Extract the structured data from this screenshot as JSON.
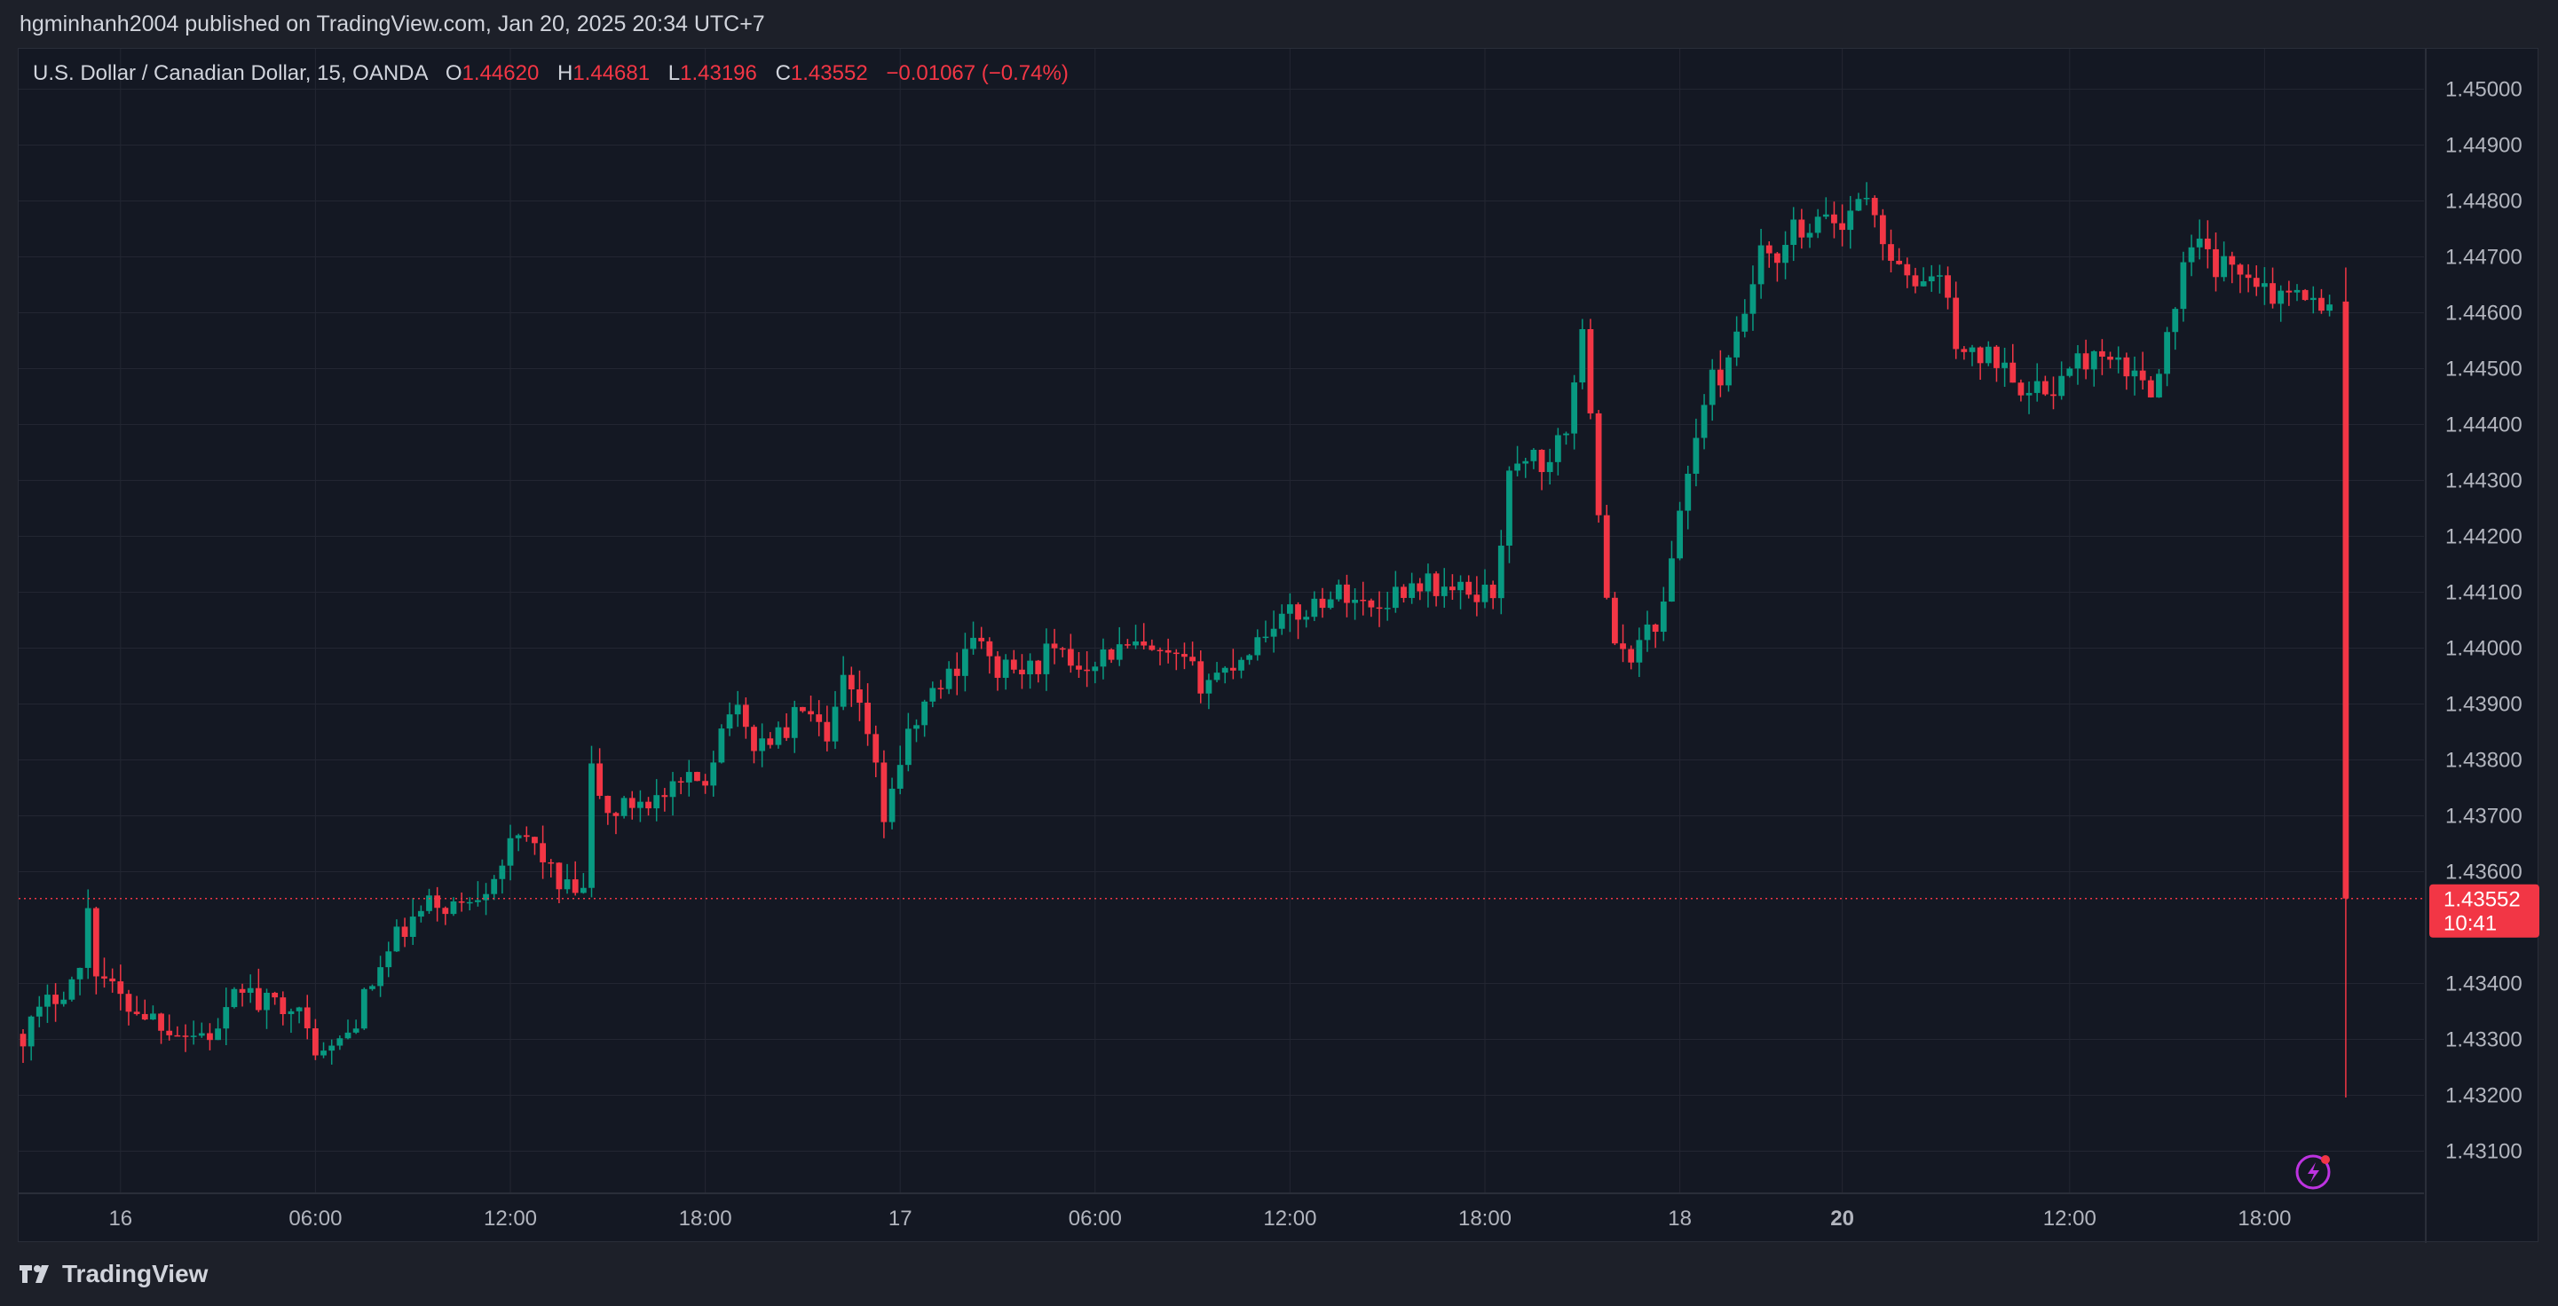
{
  "header": {
    "publisher_line": "hgminhanh2004 published on TradingView.com, Jan 20, 2025 20:34 UTC+7"
  },
  "legend": {
    "symbol": "U.S. Dollar / Canadian Dollar, 15, OANDA",
    "o_label": "O",
    "o_value": "1.44620",
    "h_label": "H",
    "h_value": "1.44681",
    "l_label": "L",
    "l_value": "1.43196",
    "c_label": "C",
    "c_value": "1.43552",
    "change": "−0.01067 (−0.74%)"
  },
  "price_tag": {
    "price": "1.43552",
    "countdown": "10:41"
  },
  "footer": {
    "brand": "TradingView"
  },
  "colors": {
    "background": "#141823",
    "page": "#1d2029",
    "grid": "#232632",
    "up": "#089981",
    "down": "#f23645",
    "text": "#d1d4dc",
    "tag": "#f23645",
    "alert_icon": "#bd33e0"
  },
  "icons": {
    "logo": "tradingview-logo-icon",
    "alert": "lightning-alert-icon"
  },
  "chart_data": {
    "type": "candlestick",
    "ylim": [
      1.4305,
      1.4505
    ],
    "y_ticks": [
      "1.45000",
      "1.44900",
      "1.44800",
      "1.44700",
      "1.44600",
      "1.44500",
      "1.44400",
      "1.44300",
      "1.44200",
      "1.44100",
      "1.44000",
      "1.43900",
      "1.43800",
      "1.43700",
      "1.43600",
      "1.43400",
      "1.43300",
      "1.43200",
      "1.43100"
    ],
    "x_ticks": [
      {
        "label": "16",
        "bold": false,
        "slot": 12
      },
      {
        "label": "06:00",
        "bold": false,
        "slot": 36
      },
      {
        "label": "12:00",
        "bold": false,
        "slot": 60
      },
      {
        "label": "18:00",
        "bold": false,
        "slot": 84
      },
      {
        "label": "17",
        "bold": false,
        "slot": 108
      },
      {
        "label": "06:00",
        "bold": false,
        "slot": 132
      },
      {
        "label": "12:00",
        "bold": false,
        "slot": 156
      },
      {
        "label": "18:00",
        "bold": false,
        "slot": 180
      },
      {
        "label": "18",
        "bold": false,
        "slot": 204
      },
      {
        "label": "20",
        "bold": true,
        "slot": 224
      },
      {
        "label": "12:00",
        "bold": false,
        "slot": 252
      },
      {
        "label": "18:00",
        "bold": false,
        "slot": 276
      }
    ],
    "last_price": 1.43552,
    "close_path": [
      [
        0,
        1.4331
      ],
      [
        4,
        1.4338
      ],
      [
        7,
        1.4342
      ],
      [
        8,
        1.4354
      ],
      [
        9,
        1.4343
      ],
      [
        12,
        1.4337
      ],
      [
        16,
        1.4334
      ],
      [
        20,
        1.4331
      ],
      [
        24,
        1.4331
      ],
      [
        27,
        1.434
      ],
      [
        29,
        1.4336
      ],
      [
        33,
        1.4337
      ],
      [
        35,
        1.4331
      ],
      [
        37,
        1.4327
      ],
      [
        40,
        1.4331
      ],
      [
        43,
        1.434
      ],
      [
        46,
        1.4348
      ],
      [
        50,
        1.4354
      ],
      [
        54,
        1.4354
      ],
      [
        57,
        1.4358
      ],
      [
        60,
        1.4364
      ],
      [
        62,
        1.4366
      ],
      [
        64,
        1.4363
      ],
      [
        66,
        1.4357
      ],
      [
        69,
        1.4356
      ],
      [
        70,
        1.4378
      ],
      [
        72,
        1.437
      ],
      [
        76,
        1.4373
      ],
      [
        79,
        1.4373
      ],
      [
        81,
        1.4375
      ],
      [
        84,
        1.4377
      ],
      [
        87,
        1.439
      ],
      [
        90,
        1.4383
      ],
      [
        94,
        1.4385
      ],
      [
        96,
        1.439
      ],
      [
        99,
        1.4382
      ],
      [
        101,
        1.4394
      ],
      [
        104,
        1.4385
      ],
      [
        106,
        1.437
      ],
      [
        108,
        1.438
      ],
      [
        111,
        1.439
      ],
      [
        115,
        1.4397
      ],
      [
        117,
        1.4403
      ],
      [
        119,
        1.4397
      ],
      [
        121,
        1.4396
      ],
      [
        124,
        1.4396
      ],
      [
        126,
        1.4399
      ],
      [
        130,
        1.4397
      ],
      [
        133,
        1.4399
      ],
      [
        137,
        1.44
      ],
      [
        140,
        1.4398
      ],
      [
        143,
        1.4397
      ],
      [
        145,
        1.4394
      ],
      [
        148,
        1.4396
      ],
      [
        151,
        1.44
      ],
      [
        154,
        1.4405
      ],
      [
        157,
        1.4406
      ],
      [
        160,
        1.4409
      ],
      [
        163,
        1.441
      ],
      [
        166,
        1.4407
      ],
      [
        169,
        1.441
      ],
      [
        172,
        1.4412
      ],
      [
        176,
        1.441
      ],
      [
        180,
        1.441
      ],
      [
        181,
        1.441
      ],
      [
        183,
        1.443
      ],
      [
        185,
        1.4435
      ],
      [
        188,
        1.4432
      ],
      [
        190,
        1.444
      ],
      [
        192,
        1.4455
      ],
      [
        193,
        1.4444
      ],
      [
        194,
        1.4425
      ],
      [
        195,
        1.441
      ],
      [
        196,
        1.4399
      ],
      [
        197,
        1.4398
      ],
      [
        199,
        1.4401
      ],
      [
        202,
        1.4407
      ],
      [
        204,
        1.4425
      ],
      [
        206,
        1.4438
      ],
      [
        208,
        1.4448
      ],
      [
        210,
        1.445
      ],
      [
        212,
        1.446
      ],
      [
        214,
        1.447
      ],
      [
        216,
        1.4468
      ],
      [
        218,
        1.4475
      ],
      [
        220,
        1.4473
      ],
      [
        222,
        1.4478
      ],
      [
        224,
        1.4475
      ],
      [
        226,
        1.4482
      ],
      [
        228,
        1.4477
      ],
      [
        230,
        1.447
      ],
      [
        232,
        1.4465
      ],
      [
        236,
        1.4467
      ],
      [
        238,
        1.4455
      ],
      [
        240,
        1.4452
      ],
      [
        244,
        1.4452
      ],
      [
        247,
        1.4445
      ],
      [
        250,
        1.4447
      ],
      [
        254,
        1.4452
      ],
      [
        258,
        1.445
      ],
      [
        262,
        1.4447
      ],
      [
        264,
        1.4455
      ],
      [
        266,
        1.4468
      ],
      [
        268,
        1.4472
      ],
      [
        270,
        1.4468
      ],
      [
        274,
        1.4468
      ],
      [
        278,
        1.4462
      ],
      [
        280,
        1.4466
      ],
      [
        283,
        1.446
      ],
      [
        285,
        1.4462
      ]
    ],
    "final_candle": {
      "open": 1.4462,
      "high": 1.44681,
      "low": 1.43196,
      "close": 1.43552
    }
  }
}
